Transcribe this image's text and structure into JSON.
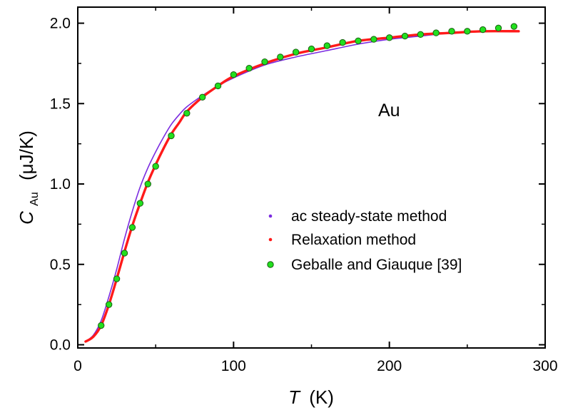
{
  "chart_data": {
    "type": "scatter",
    "title": "",
    "annotation": "Au",
    "xlabel": {
      "symbol": "T",
      "unit": "(K)"
    },
    "ylabel": {
      "symbol": "C",
      "subscript": "Au",
      "unit": "(μJ/K)"
    },
    "xlim": [
      0,
      300
    ],
    "ylim": [
      -0.02,
      2.1
    ],
    "xticks": [
      0,
      100,
      200,
      300
    ],
    "yticks": [
      0.0,
      0.5,
      1.0,
      1.5,
      2.0
    ],
    "xtick_labels": [
      "0",
      "100",
      "200",
      "300"
    ],
    "ytick_labels": [
      "0.0",
      "0.5",
      "1.0",
      "1.5",
      "2.0"
    ],
    "grid": false,
    "legend_position": "lower-right",
    "series": [
      {
        "name": "ac steady-state method",
        "color": "#7b2be0",
        "marker": "dense-small-dots",
        "x": [
          5,
          10,
          15,
          20,
          25,
          30,
          35,
          40,
          45,
          50,
          55,
          60,
          65,
          70,
          80,
          90,
          100,
          120,
          140,
          160,
          180,
          200,
          220,
          240,
          260,
          283
        ],
        "y": [
          0.02,
          0.06,
          0.15,
          0.3,
          0.47,
          0.66,
          0.83,
          0.98,
          1.1,
          1.2,
          1.29,
          1.37,
          1.43,
          1.48,
          1.55,
          1.61,
          1.66,
          1.74,
          1.79,
          1.83,
          1.87,
          1.9,
          1.92,
          1.94,
          1.95,
          1.95
        ]
      },
      {
        "name": "Relaxation method",
        "color": "#ff1a1a",
        "marker": "dense-small-dots",
        "x": [
          5,
          10,
          15,
          20,
          25,
          30,
          35,
          40,
          45,
          50,
          55,
          60,
          65,
          70,
          80,
          90,
          100,
          120,
          140,
          160,
          180,
          200,
          220,
          240,
          260,
          283
        ],
        "y": [
          0.02,
          0.05,
          0.12,
          0.25,
          0.41,
          0.58,
          0.74,
          0.88,
          1.01,
          1.12,
          1.22,
          1.31,
          1.38,
          1.45,
          1.54,
          1.61,
          1.67,
          1.75,
          1.81,
          1.85,
          1.89,
          1.91,
          1.93,
          1.94,
          1.95,
          1.95
        ]
      },
      {
        "name": "Geballe and Giauque [39]",
        "color": "#22e01e",
        "edge_color": "#1a5e12",
        "marker": "circle",
        "x": [
          15,
          20,
          25,
          30,
          35,
          40,
          45,
          50,
          60,
          70,
          80,
          90,
          100,
          110,
          120,
          130,
          140,
          150,
          160,
          170,
          180,
          190,
          200,
          210,
          220,
          230,
          240,
          250,
          260,
          270,
          280
        ],
        "y": [
          0.12,
          0.25,
          0.41,
          0.57,
          0.73,
          0.88,
          1.0,
          1.11,
          1.3,
          1.44,
          1.54,
          1.61,
          1.68,
          1.72,
          1.76,
          1.79,
          1.82,
          1.84,
          1.86,
          1.88,
          1.89,
          1.9,
          1.91,
          1.92,
          1.93,
          1.94,
          1.95,
          1.95,
          1.96,
          1.97,
          1.98
        ]
      }
    ]
  }
}
